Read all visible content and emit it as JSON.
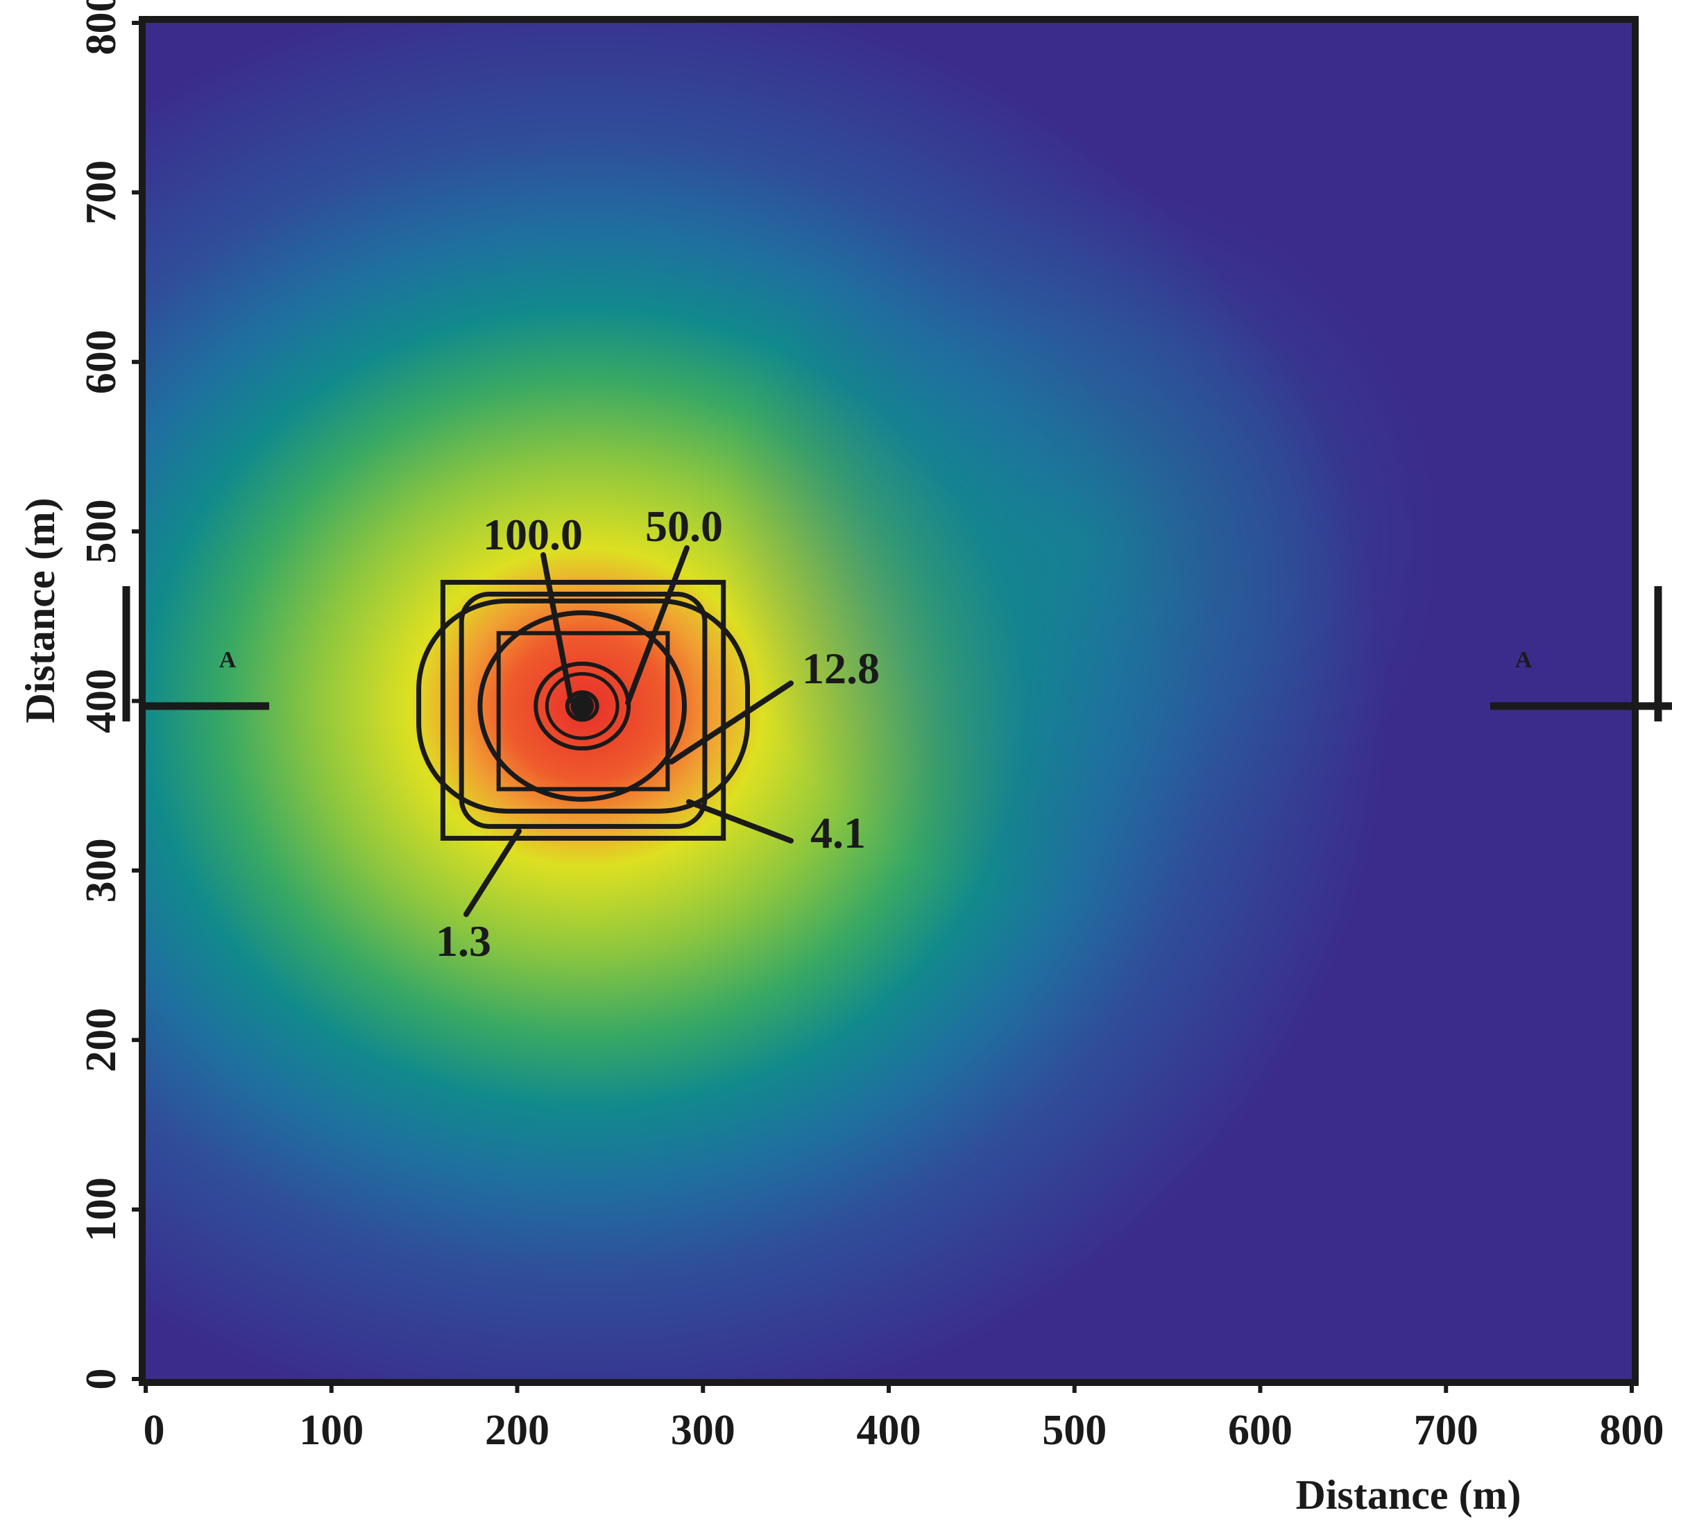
{
  "chart_data": {
    "type": "heatmap",
    "title": "",
    "xlabel": "Distance (m)",
    "ylabel": "Distance (m)",
    "xlim": [
      0,
      800
    ],
    "ylim": [
      0,
      800
    ],
    "x_ticks": [
      0,
      100,
      200,
      300,
      400,
      500,
      600,
      700,
      800
    ],
    "y_ticks": [
      0,
      100,
      200,
      300,
      400,
      500,
      600,
      700,
      800
    ],
    "x_tick_labels": [
      "0",
      "100",
      "200",
      "300",
      "400",
      "500",
      "600",
      "700",
      "800"
    ],
    "y_tick_labels": [
      "0",
      "100",
      "200",
      "300",
      "400",
      "500",
      "600",
      "700",
      "800"
    ],
    "grid": false,
    "legend": "none",
    "colormap": [
      "#3b2c8c",
      "#2f4f9a",
      "#1f6fa0",
      "#118a8c",
      "#3aa963",
      "#8cc63f",
      "#dde021",
      "#f0a032",
      "#e8302a"
    ],
    "source_point": {
      "x": 235,
      "y": 397
    },
    "contours": [
      {
        "value": "100.0",
        "shape": "circle",
        "cx": 235,
        "cy": 397,
        "r": 8
      },
      {
        "value": "50.0",
        "shape": "circle",
        "cx": 235,
        "cy": 397,
        "r": 25
      },
      {
        "value": "12.8",
        "shape": "square",
        "x0": 190,
        "x1": 281,
        "y0": 348,
        "y1": 440
      },
      {
        "value": "4.1",
        "shape": "rounded-square",
        "x0": 170,
        "x1": 301,
        "y0": 326,
        "y1": 463
      },
      {
        "value": "1.3",
        "shape": "rounded-square",
        "x0": 147,
        "x1": 324,
        "y0": 335,
        "y1": 459
      }
    ],
    "annotations": [
      "100.0",
      "50.0",
      "12.8",
      "4.1",
      "1.3"
    ],
    "outer_boxes": [
      {
        "x0": 160,
        "x1": 311,
        "y0": 319,
        "y1": 470
      },
      {
        "shape": "circle",
        "cx": 235,
        "cy": 397,
        "r": 55
      }
    ],
    "section_line": {
      "label": "A",
      "y": 397
    }
  }
}
